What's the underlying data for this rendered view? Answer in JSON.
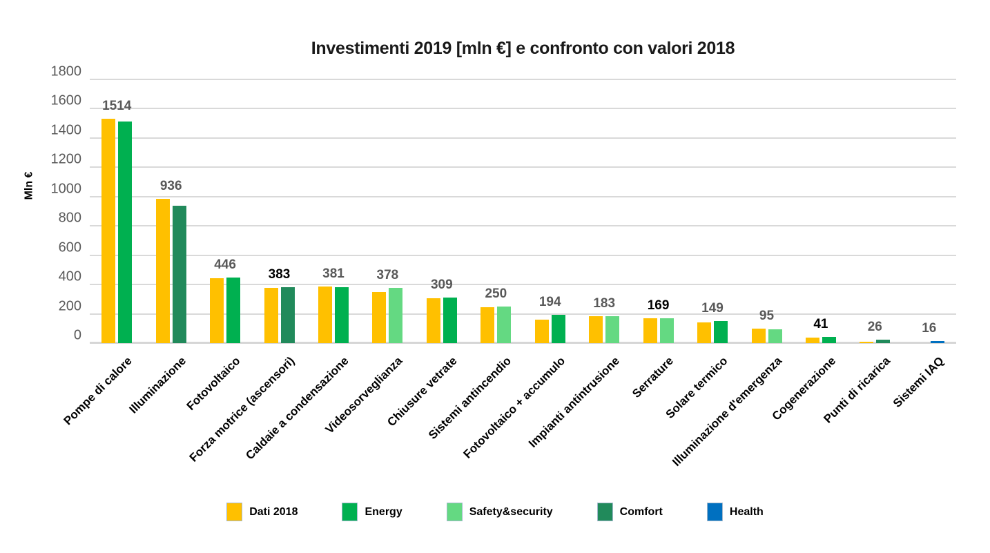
{
  "chart_data": {
    "type": "bar",
    "title": "Investimenti 2019 [mln €] e confronto con valori 2018",
    "ylabel": "Mln €",
    "xlabel": "",
    "ylim": [
      0,
      1800
    ],
    "ytick_step": 200,
    "grid": true,
    "legend_position": "bottom",
    "colors": {
      "dati_2018": "#FFC000",
      "energy": "#00B050",
      "safety": "#64D982",
      "comfort": "#218A5B",
      "health": "#0070C0",
      "gridline": "#D9D9D9",
      "tick_text": "#595959",
      "label_text": "#595959",
      "label_text_emphasis": "#000000"
    },
    "legend": [
      {
        "label": "Dati 2018",
        "color_key": "dati_2018"
      },
      {
        "label": "Energy",
        "color_key": "energy"
      },
      {
        "label": "Safety&security",
        "color_key": "safety"
      },
      {
        "label": "Comfort",
        "color_key": "comfort"
      },
      {
        "label": "Health",
        "color_key": "health"
      }
    ],
    "categories": [
      "Pompe di calore",
      "Illuminazione",
      "Fotovoltaico",
      "Forza motrice (ascensori)",
      "Caldaie a condensazione",
      "Videosorveglianza",
      "Chiusure vetrate",
      "Sistemi antincendio",
      "Fotovoltaico + accumulo",
      "Impianti antintrusione",
      "Serrature",
      "Solare termico",
      "Illuminazione d'emergenza",
      "Cogenerazione",
      "Punti di ricarica",
      "Sistemi IAQ"
    ],
    "series": [
      {
        "name": "Dati 2018",
        "values": [
          1530,
          985,
          443,
          377,
          386,
          350,
          305,
          245,
          160,
          185,
          170,
          140,
          100,
          37,
          10,
          0
        ],
        "note": "values estimated from bar heights; not labeled in chart"
      },
      {
        "name": "Investimenti 2019",
        "values": [
          1514,
          936,
          446,
          383,
          381,
          378,
          309,
          250,
          194,
          183,
          169,
          149,
          95,
          41,
          26,
          16
        ]
      }
    ],
    "points_2019_groups": [
      "energy",
      "comfort",
      "energy",
      "comfort",
      "energy",
      "safety",
      "energy",
      "safety",
      "energy",
      "safety",
      "safety",
      "energy",
      "safety",
      "energy",
      "comfort",
      "health"
    ],
    "value_labels": [
      "1514",
      "936",
      "446",
      "383",
      "381",
      "378",
      "309",
      "250",
      "194",
      "183",
      "169",
      "149",
      "95",
      "41",
      "26",
      "16"
    ],
    "value_label_black": [
      false,
      false,
      false,
      true,
      false,
      false,
      false,
      false,
      false,
      false,
      true,
      false,
      false,
      true,
      false,
      false
    ],
    "ytick_labels": [
      "0",
      "200",
      "400",
      "600",
      "800",
      "1000",
      "1200",
      "1400",
      "1600",
      "1800"
    ]
  }
}
